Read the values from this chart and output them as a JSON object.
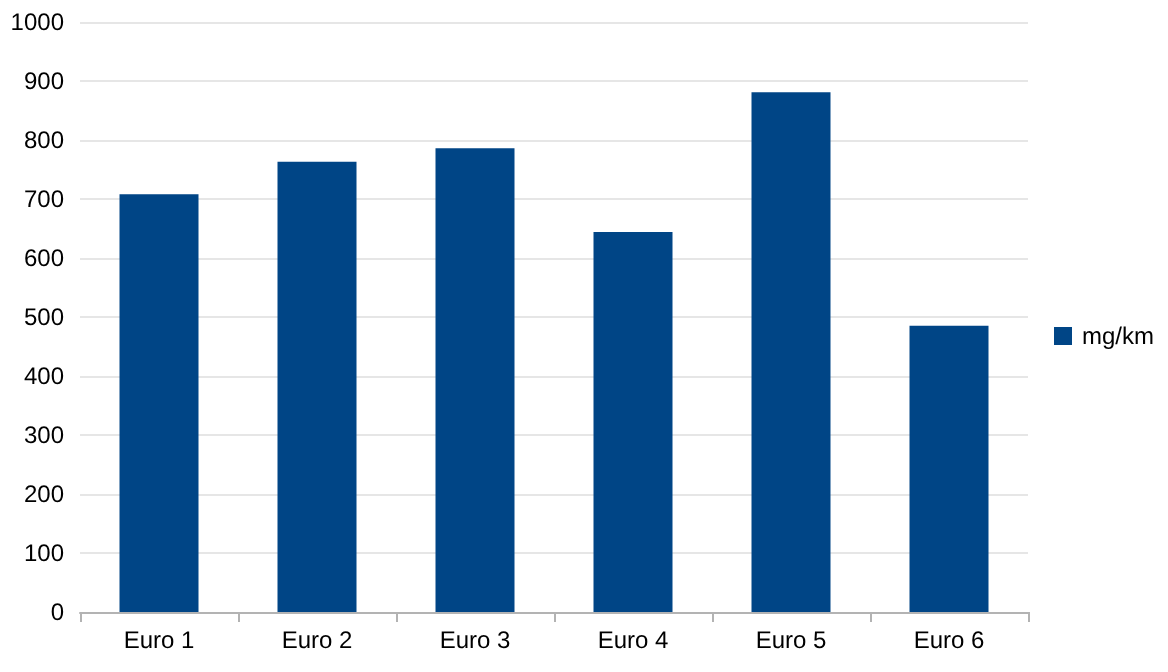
{
  "chart_data": {
    "type": "bar",
    "categories": [
      "Euro 1",
      "Euro 2",
      "Euro 3",
      "Euro 4",
      "Euro 5",
      "Euro 6"
    ],
    "series": [
      {
        "name": "mg/km",
        "color": "#004586",
        "values": [
          708,
          763,
          786,
          644,
          881,
          485
        ]
      }
    ],
    "ylim": [
      0,
      1000
    ],
    "yticks": [
      0,
      100,
      200,
      300,
      400,
      500,
      600,
      700,
      800,
      900,
      1000
    ],
    "grid": "y",
    "legend": "right"
  }
}
